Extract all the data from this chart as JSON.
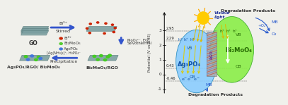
{
  "left_panel": {
    "go_label": "GO",
    "product1_label": "Ag₃PO₄/RGO/ Bi₂MoO₆",
    "product2_label": "Bi₂MoO₆/RGO",
    "legend_items": [
      "Bi³⁺",
      "Bi₂MoO₆",
      "Ag₃PO₄"
    ],
    "legend_colors": [
      "#cc2200",
      "#55cc33",
      "#4477dd"
    ],
    "sheet_color": "#7a9e9f",
    "sheet_edge": "#5a7e7f",
    "bi_dot_color": "#cc2200",
    "green_dot_color": "#44cc22",
    "blue_dot_color": "#4477dd",
    "arrow_color": "#3355cc",
    "bg_color": "#f0f0eb"
  },
  "right_panel": {
    "title_top": "Degradation Products",
    "title_bottom": "Degradation Products",
    "ylabel": "Potential (V vs NHE)",
    "ytick_vals": [
      -1,
      0,
      1,
      2,
      3
    ],
    "ytick_labels": [
      "-1",
      "0",
      "1",
      "2",
      "3"
    ],
    "levels": {
      "Ag3PO4_CB": -0.46,
      "Ag3PO4_VB": 2.29,
      "Bi2MoO6_CB": 0.43,
      "Bi2MoO6_VB": 2.95
    },
    "level_labels": [
      "-0.46",
      "0.43",
      "2.29",
      "2.95"
    ],
    "ag3po4_color": "#88ccff",
    "bi2moo6_color": "#88ee44",
    "rgo_color": "#aaaaaa",
    "rgo_stripe1": "#cc4433",
    "rgo_stripe2": "#4455cc",
    "sun_color": "#ffcc00",
    "sun_ray_color": "#ffaa00",
    "light_arrow_color": "#ddcc00",
    "top_arrow_color": "#2255cc",
    "bottom_arrow_color": "#2255cc",
    "bg_color": "#f0f0eb"
  }
}
